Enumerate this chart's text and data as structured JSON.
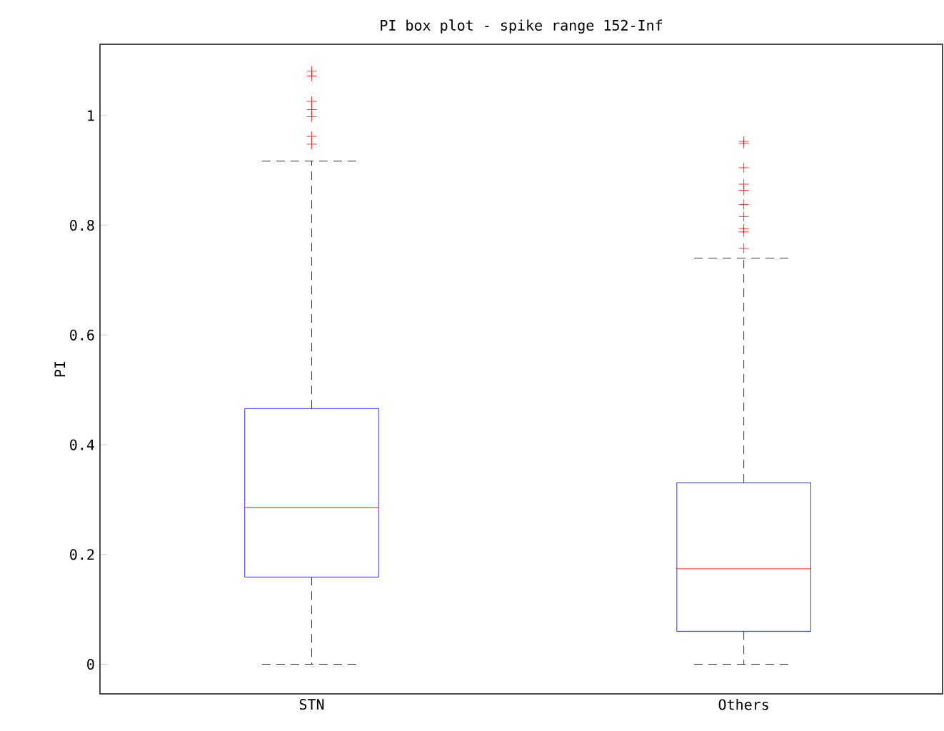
{
  "chart_data": {
    "type": "box",
    "title": "PI box plot - spike range 152-Inf",
    "ylabel": "PI",
    "categories": [
      "STN",
      "Others"
    ],
    "boxes": [
      {
        "low": 0,
        "q1": 0.159,
        "median": 0.286,
        "q3": 0.466,
        "high": 0.917,
        "outliers": [
          1.081,
          1.072,
          1.026,
          1.011,
          0.998,
          0.962,
          0.948
        ]
      },
      {
        "low": 0,
        "q1": 0.06,
        "median": 0.174,
        "q3": 0.331,
        "high": 0.74,
        "outliers": [
          0.953,
          0.949,
          0.905,
          0.875,
          0.864,
          0.838,
          0.816,
          0.794,
          0.788,
          0.758
        ]
      }
    ],
    "ylim": [
      -0.054,
      1.13
    ],
    "yticks": [
      0,
      0.2,
      0.4,
      0.6,
      0.8,
      1
    ],
    "marker": "cross"
  }
}
